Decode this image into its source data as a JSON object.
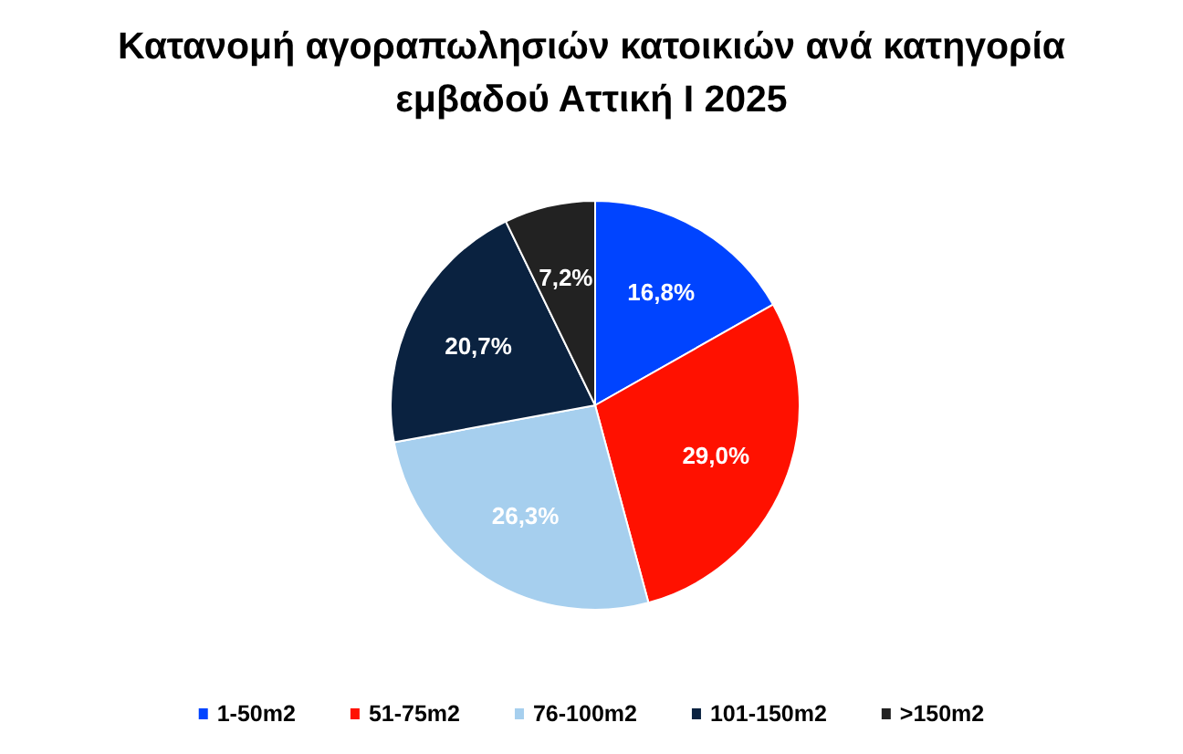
{
  "chart_data": {
    "type": "pie",
    "title": "Κατανομή αγοραπωλησιών κατοικιών ανά κατηγορία εμβαδού Αττική I 2025",
    "categories": [
      "1-50m2",
      "51-75m2",
      "76-100m2",
      "101-150m2",
      ">150m2"
    ],
    "values": [
      16.8,
      29.0,
      26.3,
      20.7,
      7.2
    ],
    "value_labels": [
      "16,8%",
      "29,0%",
      "26,3%",
      "20,7%",
      "7,2%"
    ],
    "colors": [
      "#0044ff",
      "#ff1100",
      "#a6cfee",
      "#0a2240",
      "#222222"
    ],
    "legend": "bottom"
  }
}
